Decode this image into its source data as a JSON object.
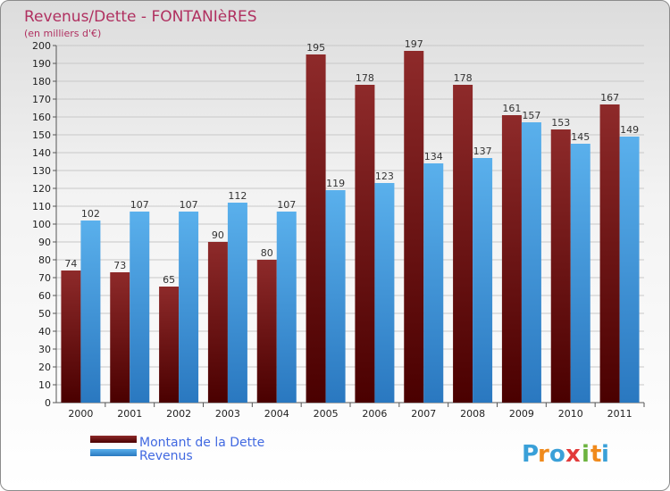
{
  "chart_data": {
    "type": "bar",
    "title": "Revenus/Dette - FONTANIèRES",
    "subtitle": "(en milliers d'€)",
    "categories": [
      "2000",
      "2001",
      "2002",
      "2003",
      "2004",
      "2005",
      "2006",
      "2007",
      "2008",
      "2009",
      "2010",
      "2011"
    ],
    "series": [
      {
        "name": "Montant de la Dette",
        "color": "#7a1a1a",
        "values": [
          74,
          73,
          65,
          90,
          80,
          195,
          178,
          197,
          178,
          161,
          153,
          167
        ]
      },
      {
        "name": "Revenus",
        "color": "#3a96dc",
        "values": [
          102,
          107,
          107,
          112,
          107,
          119,
          123,
          134,
          137,
          157,
          145,
          149
        ]
      }
    ],
    "ylim": [
      0,
      200
    ],
    "ytick_step": 10,
    "grid": true,
    "legend_position": "bottom-left"
  },
  "logo": {
    "letters": [
      "P",
      "r",
      "o",
      "x",
      "i",
      "t",
      "i"
    ],
    "colors": [
      "#3aa0d8",
      "#f08a1c",
      "#3aa0d8",
      "#e23a3a",
      "#6cb33f",
      "#f08a1c",
      "#3aa0d8"
    ]
  }
}
